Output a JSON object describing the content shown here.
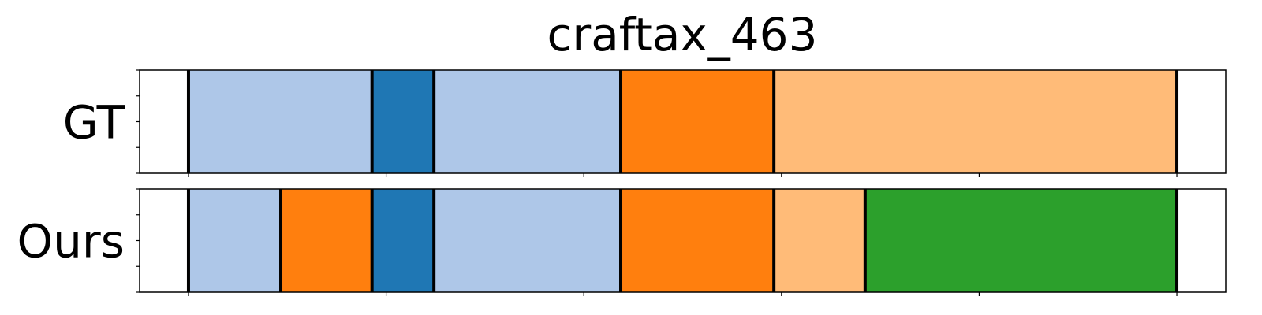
{
  "chart_data": {
    "type": "segmentation-timeline",
    "title": "craftax_463",
    "xlim": [
      0,
      1
    ],
    "palette": {
      "light_blue": "#aec7e8",
      "blue": "#1f77b4",
      "orange": "#ff7f0e",
      "light_orange": "#ffbb78",
      "green": "#2ca02c",
      "boundary": "#000000",
      "frame": "#000000"
    },
    "rows": [
      {
        "label": "GT",
        "segments": [
          {
            "start": 0.045,
            "end": 0.214,
            "color": "#aec7e8"
          },
          {
            "start": 0.214,
            "end": 0.271,
            "color": "#1f77b4"
          },
          {
            "start": 0.271,
            "end": 0.443,
            "color": "#aec7e8"
          },
          {
            "start": 0.443,
            "end": 0.584,
            "color": "#ff7f0e"
          },
          {
            "start": 0.584,
            "end": 0.955,
            "color": "#ffbb78"
          }
        ]
      },
      {
        "label": "Ours",
        "segments": [
          {
            "start": 0.045,
            "end": 0.13,
            "color": "#aec7e8"
          },
          {
            "start": 0.13,
            "end": 0.214,
            "color": "#ff7f0e"
          },
          {
            "start": 0.214,
            "end": 0.271,
            "color": "#1f77b4"
          },
          {
            "start": 0.271,
            "end": 0.443,
            "color": "#aec7e8"
          },
          {
            "start": 0.443,
            "end": 0.584,
            "color": "#ff7f0e"
          },
          {
            "start": 0.584,
            "end": 0.668,
            "color": "#ffbb78"
          },
          {
            "start": 0.668,
            "end": 0.955,
            "color": "#2ca02c"
          }
        ]
      }
    ],
    "x_ticks": [
      0.045,
      0.227,
      0.409,
      0.591,
      0.773,
      0.955
    ],
    "y_ticks": [
      0,
      0.25,
      0.5,
      0.75,
      1
    ]
  }
}
